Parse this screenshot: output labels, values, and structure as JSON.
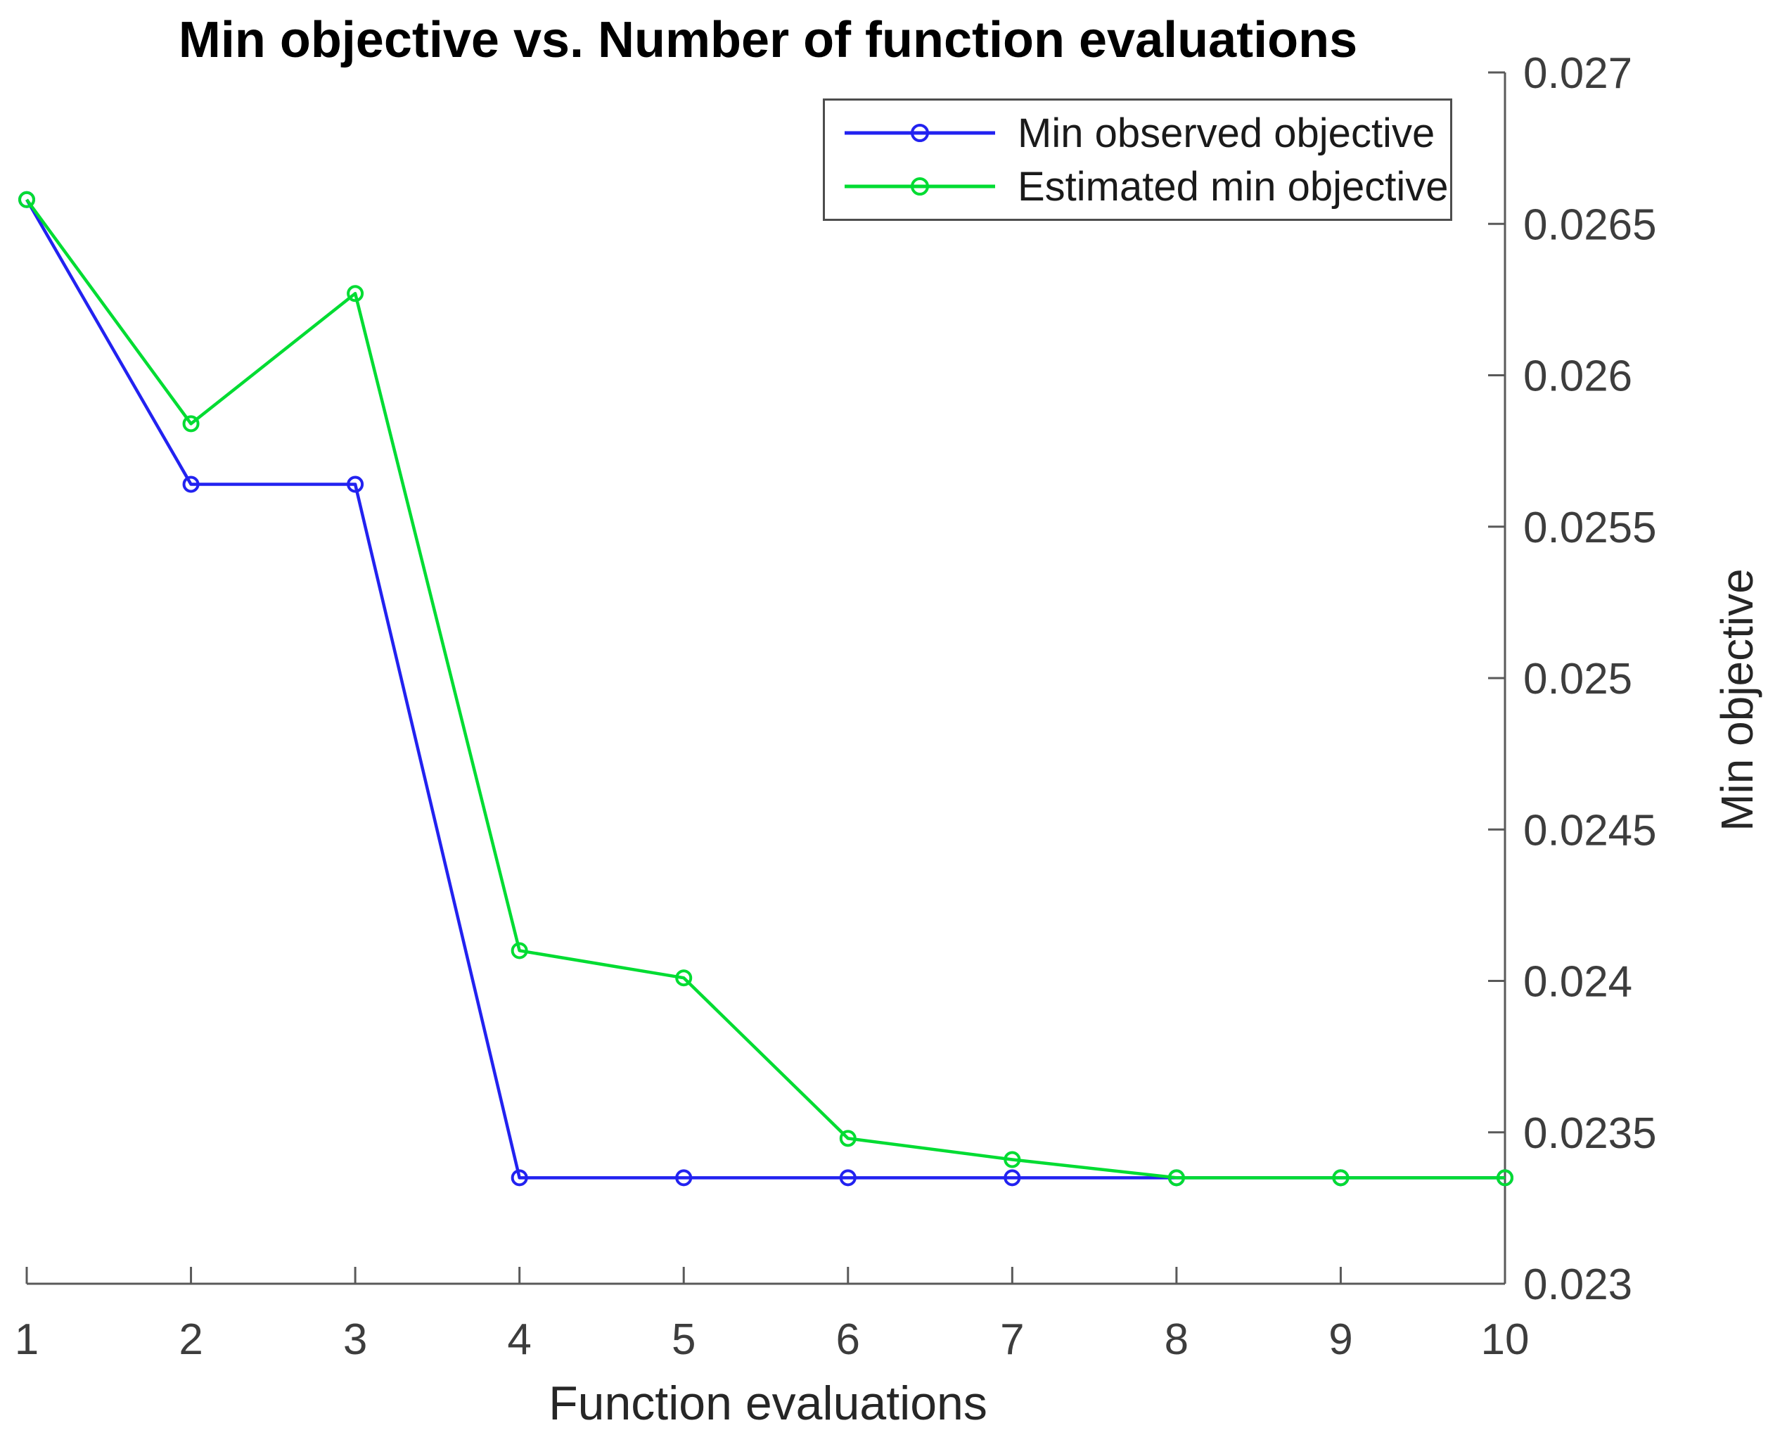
{
  "figure": {
    "background": "#ffffff"
  },
  "chart_data": {
    "type": "line",
    "title": "Min objective vs. Number of function evaluations",
    "xlabel": "Function evaluations",
    "ylabel": "Min objective",
    "x": [
      1,
      2,
      3,
      4,
      5,
      6,
      7,
      8,
      9,
      10
    ],
    "xlim": [
      1,
      10
    ],
    "ylim": [
      0.023,
      0.027
    ],
    "xtick_labels": [
      "1",
      "2",
      "3",
      "4",
      "5",
      "6",
      "7",
      "8",
      "9",
      "10"
    ],
    "ytick_values": [
      0.023,
      0.0235,
      0.024,
      0.0245,
      0.025,
      0.0255,
      0.026,
      0.0265,
      0.027
    ],
    "ytick_labels": [
      "0.023",
      "0.0235",
      "0.024",
      "0.0245",
      "0.025",
      "0.0255",
      "0.026",
      "0.0265",
      "0.027"
    ],
    "grid": false,
    "y_axis_location": "right",
    "legend_position": "upper-right-inside",
    "axis_color": "#595959",
    "tick_label_color": "#3d3d3d",
    "series": [
      {
        "name": "Min observed objective",
        "color": "#2222F0",
        "marker": "circle",
        "values": [
          0.02658,
          0.02564,
          0.02564,
          0.02335,
          0.02335,
          0.02335,
          0.02335,
          0.02335,
          0.02335,
          0.02335
        ]
      },
      {
        "name": "Estimated min objective",
        "color": "#00DC32",
        "marker": "circle",
        "values": [
          0.02658,
          0.02584,
          0.02627,
          0.0241,
          0.02401,
          0.02348,
          0.02341,
          0.02335,
          0.02335,
          0.02335
        ]
      }
    ]
  }
}
